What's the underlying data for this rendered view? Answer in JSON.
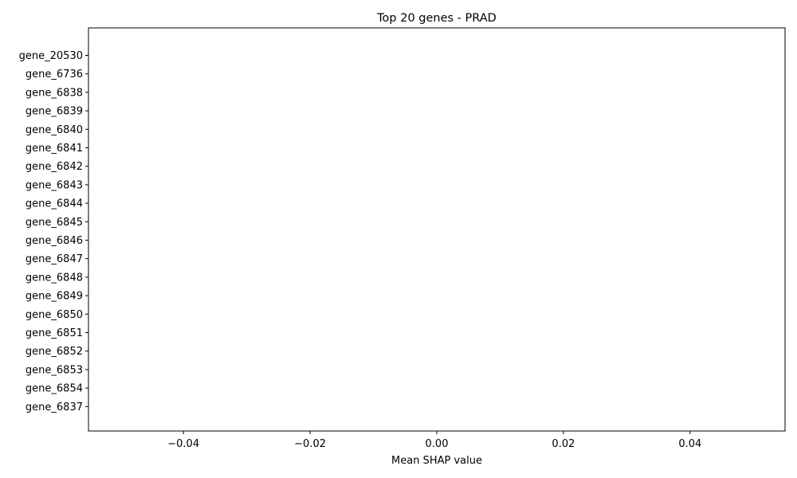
{
  "chart_data": {
    "type": "bar",
    "orientation": "horizontal",
    "title": "Top 20 genes - PRAD",
    "xlabel": "Mean SHAP value",
    "ylabel": "",
    "categories": [
      "gene_20530",
      "gene_6736",
      "gene_6838",
      "gene_6839",
      "gene_6840",
      "gene_6841",
      "gene_6842",
      "gene_6843",
      "gene_6844",
      "gene_6845",
      "gene_6846",
      "gene_6847",
      "gene_6848",
      "gene_6849",
      "gene_6850",
      "gene_6851",
      "gene_6852",
      "gene_6853",
      "gene_6854",
      "gene_6837"
    ],
    "values": [
      0,
      0,
      0,
      0,
      0,
      0,
      0,
      0,
      0,
      0,
      0,
      0,
      0,
      0,
      0,
      0,
      0,
      0,
      0,
      0
    ],
    "xlim": [
      -0.055,
      0.055
    ],
    "xticks": [
      -0.04,
      -0.02,
      0.0,
      0.02,
      0.04
    ],
    "xtick_labels": [
      "−0.04",
      "−0.02",
      "0.00",
      "0.02",
      "0.04"
    ],
    "grid": false,
    "legend": false,
    "colors": {
      "bar": "#1f77b4",
      "axis": "#000000",
      "background": "#ffffff"
    }
  }
}
